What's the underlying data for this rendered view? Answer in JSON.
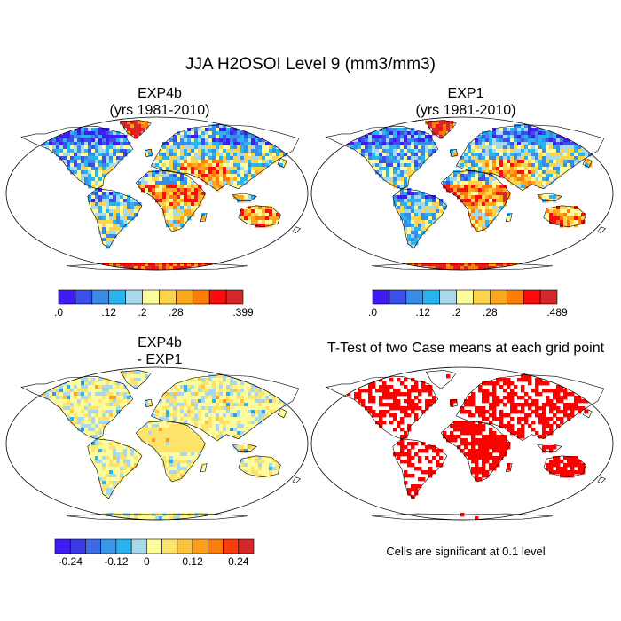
{
  "title": "JJA H2OSOI Level 9 (mm3/mm3)",
  "panels": [
    {
      "id": "exp4b",
      "title_line1": "EXP4b",
      "title_line2": "(yrs 1981-2010)"
    },
    {
      "id": "exp1",
      "title_line1": "EXP1",
      "title_line2": "(yrs 1981-2010)"
    },
    {
      "id": "diff",
      "title_line1": "EXP4b",
      "title_line2": "- EXP1"
    },
    {
      "id": "ttest",
      "title_line1": "T-Test of two Case means at each grid point"
    }
  ],
  "colorbars": [
    {
      "id": "exp4b",
      "colors": [
        "#3e1df2",
        "#3a50e8",
        "#3a8ae8",
        "#28b4f0",
        "#a8d8ec",
        "#fcfc9c",
        "#fcd44c",
        "#fca81c",
        "#fc7c0c",
        "#fc0c0c",
        "#d62828"
      ],
      "labels": [
        ".0",
        ".12",
        ".2",
        ".28",
        ".399"
      ]
    },
    {
      "id": "exp1",
      "colors": [
        "#3e1df2",
        "#3a50e8",
        "#3a8ae8",
        "#28b4f0",
        "#a8d8ec",
        "#fcfc9c",
        "#fcd44c",
        "#fca81c",
        "#fc7c0c",
        "#fc0c0c",
        "#d62828"
      ],
      "labels": [
        ".0",
        ".12",
        ".2",
        ".28",
        ".489"
      ]
    },
    {
      "id": "diff",
      "colors": [
        "#3e1df2",
        "#3a3ae8",
        "#3a6ae8",
        "#3a96e8",
        "#28b4f0",
        "#a8d8ec",
        "#fcfc9c",
        "#fce46c",
        "#fcc43c",
        "#fca01c",
        "#fc7c0c",
        "#fc3c0c",
        "#d62828"
      ],
      "labels": [
        "-0.24",
        "-0.12",
        "0",
        "0.12",
        "0.24"
      ]
    }
  ],
  "note": "Cells are significant at 0.1 level",
  "colors": {
    "significant": "#ff0000",
    "coast": "#000000"
  }
}
